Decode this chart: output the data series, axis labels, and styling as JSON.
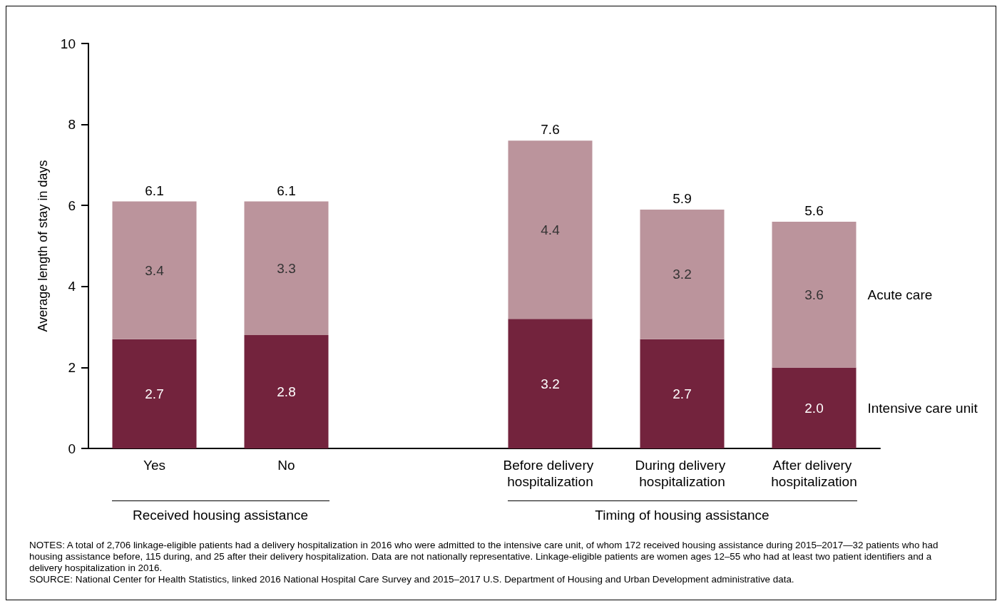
{
  "chart_data": {
    "type": "bar",
    "stacked": true,
    "ylabel": "Average length of stay in days",
    "categories": [
      "Yes",
      "No",
      null,
      "Before delivery hospitalization",
      "During delivery hospitalization",
      "After delivery hospitalization"
    ],
    "series": [
      {
        "name": "Intensive care unit",
        "color": "#73233d",
        "values": [
          2.7,
          2.8,
          null,
          3.2,
          2.7,
          2.0
        ],
        "value_labels": [
          "2.7",
          "2.8",
          null,
          "3.2",
          "2.7",
          "2.0"
        ]
      },
      {
        "name": "Acute care",
        "color": "#bb949c",
        "values": [
          3.4,
          3.3,
          null,
          4.4,
          3.2,
          3.6
        ],
        "value_labels": [
          "3.4",
          "3.3",
          null,
          "4.4",
          "3.2",
          "3.6"
        ]
      }
    ],
    "totals": [
      "6.1",
      "6.1",
      null,
      "7.6",
      "5.9",
      "5.6"
    ],
    "ylim": [
      0,
      10
    ],
    "yticks": [
      0,
      2,
      4,
      6,
      8,
      10
    ],
    "grid": false,
    "legend": false,
    "annotations": [
      "Received housing assistance",
      "Timing of housing assistance",
      "NOTES: A total of 2,706 linkage-eligible patients had a delivery hospitalization in 2016 who were admitted to the intensive care unit, of whom 172 received housing assistance during 2015–2017—32 patients who had housing assistance before, 115 during, and 25 after their delivery hospitalization. Data are not nationally representative. Linkage-eligible patients are women ages 12–55 who had at least two patient identifiers and a delivery hospitalization in 2016.",
      "SOURCE: National Center for Health Statistics, linked 2016 National Hospital Care Survey and 2015–2017 U.S. Department of Housing and Urban Development administrative data."
    ]
  }
}
